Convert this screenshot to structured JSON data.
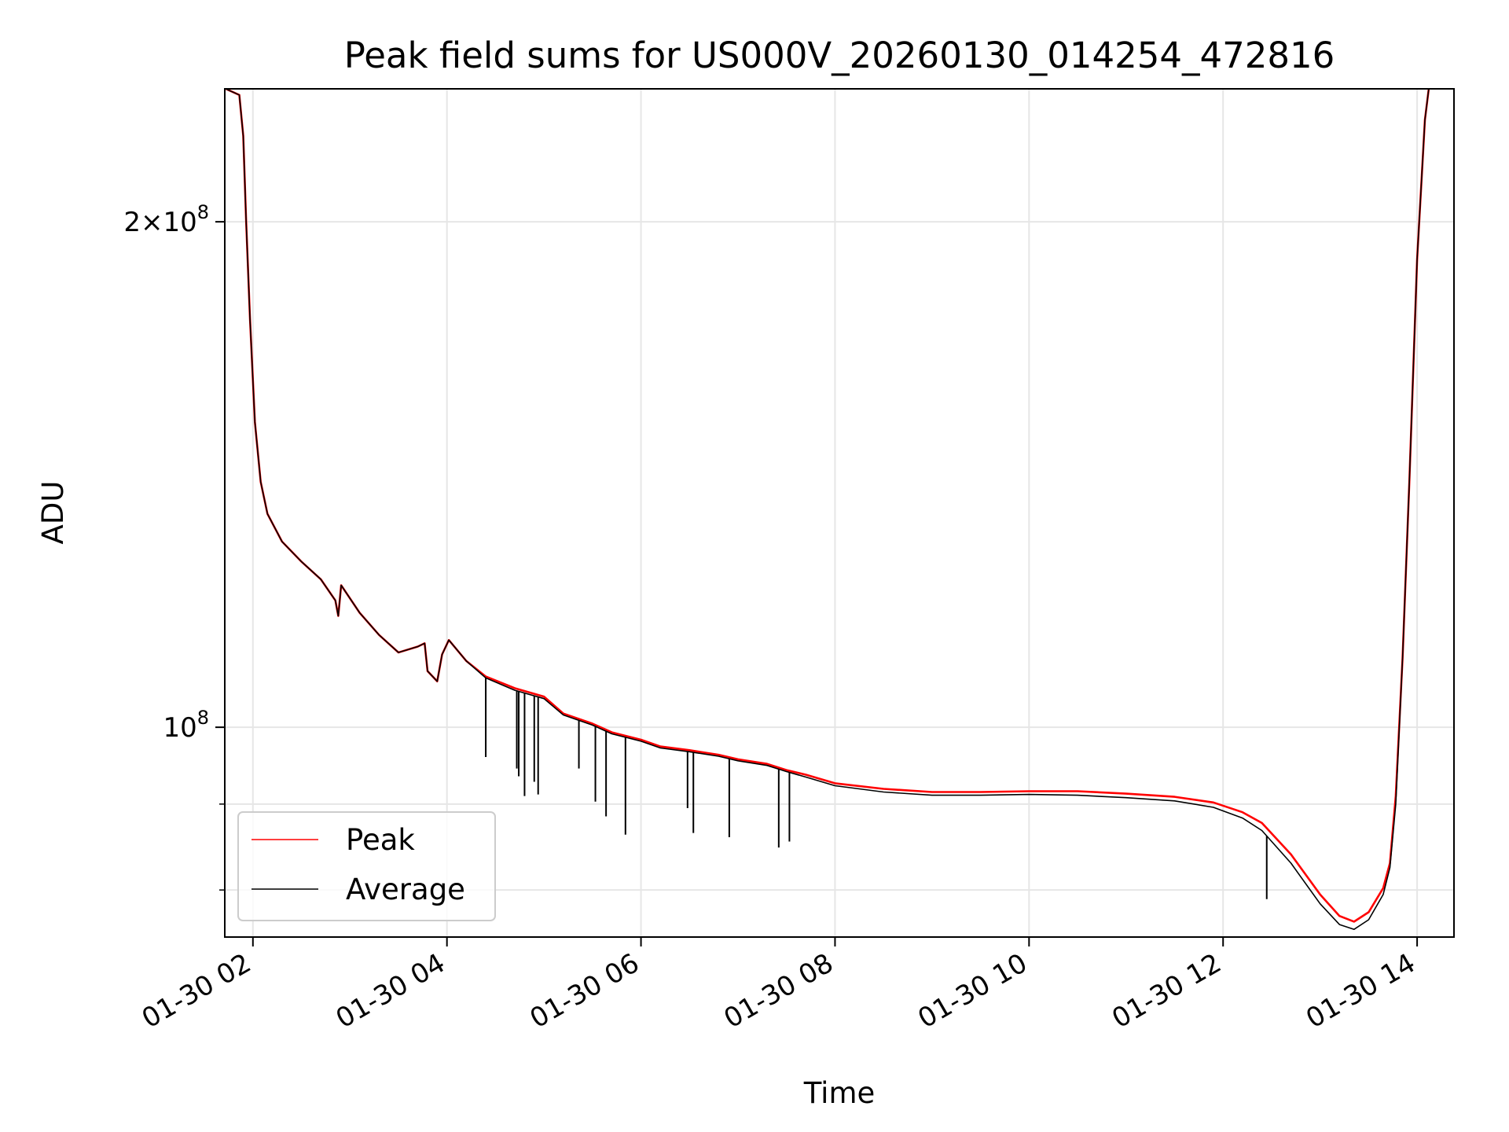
{
  "chart_data": {
    "type": "line",
    "title": "Peak field sums for US000V_20260130_014254_472816",
    "xlabel": "Time",
    "ylabel": "ADU",
    "yscale": "log",
    "grid": true,
    "legend_position": "lower-left",
    "x_unit": "hours since 2026-01-30 00:00",
    "xlim": [
      1.71,
      14.38
    ],
    "ylim": [
      75000000,
      240000000
    ],
    "x_ticks": [
      {
        "value": 2,
        "label": "01-30 02"
      },
      {
        "value": 4,
        "label": "01-30 04"
      },
      {
        "value": 6,
        "label": "01-30 06"
      },
      {
        "value": 8,
        "label": "01-30 08"
      },
      {
        "value": 10,
        "label": "01-30 10"
      },
      {
        "value": 12,
        "label": "01-30 12"
      },
      {
        "value": 14,
        "label": "01-30 14"
      }
    ],
    "y_ticks": [
      {
        "value": 100000000,
        "base": "10",
        "exp": "8"
      },
      {
        "value": 200000000,
        "mant": "2",
        "times": "×",
        "base": "10",
        "exp": "8"
      }
    ],
    "y_minor_ticks": [
      80000000,
      90000000
    ],
    "series": [
      {
        "name": "Peak",
        "color": "#ff0000",
        "points": [
          [
            1.72,
            240000000
          ],
          [
            1.86,
            238000000
          ],
          [
            1.9,
            225000000
          ],
          [
            1.93,
            200000000
          ],
          [
            1.97,
            175000000
          ],
          [
            2.02,
            152000000
          ],
          [
            2.08,
            140000000
          ],
          [
            2.15,
            134000000
          ],
          [
            2.3,
            129000000
          ],
          [
            2.5,
            125500000
          ],
          [
            2.7,
            122500000
          ],
          [
            2.85,
            119000000
          ],
          [
            2.88,
            116500000
          ],
          [
            2.91,
            121500000
          ],
          [
            3.1,
            117000000
          ],
          [
            3.3,
            113500000
          ],
          [
            3.5,
            110800000
          ],
          [
            3.7,
            111700000
          ],
          [
            3.77,
            112200000
          ],
          [
            3.8,
            108000000
          ],
          [
            3.9,
            106500000
          ],
          [
            3.95,
            110500000
          ],
          [
            4.02,
            112700000
          ],
          [
            4.2,
            109500000
          ],
          [
            4.4,
            107200000
          ],
          [
            4.7,
            105500000
          ],
          [
            5.0,
            104300000
          ],
          [
            5.2,
            101900000
          ],
          [
            5.5,
            100500000
          ],
          [
            5.7,
            99300000
          ],
          [
            6.0,
            98300000
          ],
          [
            6.2,
            97400000
          ],
          [
            6.5,
            96900000
          ],
          [
            6.8,
            96300000
          ],
          [
            7.0,
            95700000
          ],
          [
            7.3,
            95100000
          ],
          [
            7.5,
            94300000
          ],
          [
            7.7,
            93700000
          ],
          [
            8.0,
            92600000
          ],
          [
            8.5,
            91900000
          ],
          [
            9.0,
            91500000
          ],
          [
            9.5,
            91500000
          ],
          [
            10.0,
            91600000
          ],
          [
            10.5,
            91600000
          ],
          [
            11.0,
            91300000
          ],
          [
            11.5,
            90900000
          ],
          [
            11.9,
            90200000
          ],
          [
            12.2,
            89000000
          ],
          [
            12.4,
            87700000
          ],
          [
            12.7,
            84000000
          ],
          [
            13.0,
            79500000
          ],
          [
            13.2,
            77200000
          ],
          [
            13.35,
            76600000
          ],
          [
            13.5,
            77600000
          ],
          [
            13.65,
            80200000
          ],
          [
            13.72,
            83000000
          ],
          [
            13.78,
            91000000
          ],
          [
            13.85,
            110000000
          ],
          [
            13.92,
            140000000
          ],
          [
            14.0,
            190000000
          ],
          [
            14.08,
            230000000
          ],
          [
            14.12,
            240000000
          ]
        ]
      },
      {
        "name": "Average",
        "color": "#000000",
        "points": [
          [
            1.72,
            240000000
          ],
          [
            1.86,
            238000000
          ],
          [
            1.9,
            225000000
          ],
          [
            1.93,
            200000000
          ],
          [
            1.97,
            175000000
          ],
          [
            2.02,
            152000000
          ],
          [
            2.08,
            140000000
          ],
          [
            2.15,
            134000000
          ],
          [
            2.3,
            129000000
          ],
          [
            2.5,
            125500000
          ],
          [
            2.7,
            122500000
          ],
          [
            2.85,
            119000000
          ],
          [
            2.88,
            116500000
          ],
          [
            2.91,
            121500000
          ],
          [
            3.1,
            117000000
          ],
          [
            3.3,
            113500000
          ],
          [
            3.5,
            110800000
          ],
          [
            3.7,
            111700000
          ],
          [
            3.77,
            112200000
          ],
          [
            3.8,
            108000000
          ],
          [
            3.9,
            106500000
          ],
          [
            3.95,
            110500000
          ],
          [
            4.02,
            112700000
          ],
          [
            4.2,
            109500000
          ],
          [
            4.4,
            107000000
          ],
          [
            4.7,
            105200000
          ],
          [
            5.0,
            104000000
          ],
          [
            5.2,
            101700000
          ],
          [
            5.5,
            100300000
          ],
          [
            5.7,
            99100000
          ],
          [
            6.0,
            98100000
          ],
          [
            6.2,
            97200000
          ],
          [
            6.5,
            96700000
          ],
          [
            6.8,
            96100000
          ],
          [
            7.0,
            95500000
          ],
          [
            7.3,
            94900000
          ],
          [
            7.5,
            94100000
          ],
          [
            7.7,
            93400000
          ],
          [
            8.0,
            92300000
          ],
          [
            8.5,
            91500000
          ],
          [
            9.0,
            91100000
          ],
          [
            9.5,
            91100000
          ],
          [
            10.0,
            91200000
          ],
          [
            10.5,
            91100000
          ],
          [
            11.0,
            90800000
          ],
          [
            11.5,
            90400000
          ],
          [
            11.9,
            89600000
          ],
          [
            12.2,
            88300000
          ],
          [
            12.4,
            86800000
          ],
          [
            12.7,
            83000000
          ],
          [
            13.0,
            78500000
          ],
          [
            13.2,
            76300000
          ],
          [
            13.35,
            75800000
          ],
          [
            13.5,
            76800000
          ],
          [
            13.65,
            79500000
          ],
          [
            13.72,
            82500000
          ],
          [
            13.78,
            90000000
          ],
          [
            13.85,
            110000000
          ],
          [
            13.92,
            140000000
          ],
          [
            14.0,
            190000000
          ],
          [
            14.08,
            230000000
          ],
          [
            14.12,
            240000000
          ]
        ],
        "dips": [
          [
            4.4,
            96000000
          ],
          [
            4.72,
            94500000
          ],
          [
            4.74,
            93500000
          ],
          [
            4.8,
            91000000
          ],
          [
            4.9,
            92800000
          ],
          [
            4.94,
            91200000
          ],
          [
            5.36,
            94500000
          ],
          [
            5.53,
            90300000
          ],
          [
            5.64,
            88500000
          ],
          [
            5.84,
            86300000
          ],
          [
            6.48,
            89500000
          ],
          [
            6.54,
            86500000
          ],
          [
            6.91,
            86000000
          ],
          [
            7.42,
            84800000
          ],
          [
            7.53,
            85500000
          ],
          [
            12.45,
            79000000
          ]
        ]
      }
    ]
  }
}
